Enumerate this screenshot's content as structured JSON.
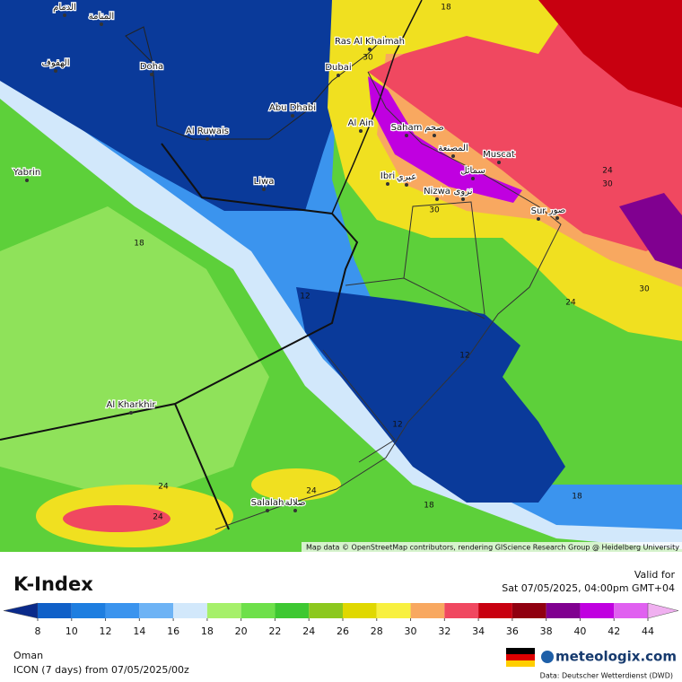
{
  "map": {
    "places": [
      "الدمام",
      "المنامة",
      "الهفوف",
      "Doha",
      "Abu Dhabi",
      "Dubai",
      "Ras Al Khaimah",
      "Al Ruwais",
      "Liwa",
      "Yabrin",
      "Al Ain",
      "Saham",
      "صحم",
      "المصنعة",
      "Muscat",
      "سمائل",
      "Ibri",
      "عبري",
      "Nizwa",
      "نزوى",
      "Sur",
      "صور",
      "Al Kharkhir",
      "Salalah",
      "صلالة"
    ],
    "contours": [
      30,
      18,
      18,
      12,
      12,
      12,
      24,
      24,
      24,
      18,
      18,
      24,
      30,
      24,
      30,
      30
    ],
    "attribution": "Map data © OpenStreetMap contributors, rendering GIScience Research Group @ Heidelberg University"
  },
  "legend": {
    "title": "K-Index",
    "ticks": [
      8,
      10,
      12,
      14,
      16,
      18,
      20,
      22,
      24,
      26,
      28,
      30,
      32,
      34,
      36,
      38,
      40,
      42,
      44
    ],
    "colors": [
      "#0a2a8a",
      "#1060c8",
      "#1e7ee0",
      "#3b94ee",
      "#6db3f5",
      "#d2e8fb",
      "#a6f06a",
      "#6ee04a",
      "#3ec832",
      "#8cc81e",
      "#e0d800",
      "#f8f040",
      "#f8a860",
      "#f04860",
      "#c80010",
      "#900010",
      "#800090",
      "#c000e0",
      "#e060f0",
      "#f0b0f0"
    ]
  },
  "valid": {
    "label": "Valid for",
    "time": "Sat 07/05/2025, 04:00pm GMT+04"
  },
  "footer": {
    "region": "Oman",
    "model": "ICON (7 days) from 07/05/2025/00z",
    "brand": "meteologix.com",
    "source": "Data: Deutscher Wetterdienst (DWD)"
  }
}
